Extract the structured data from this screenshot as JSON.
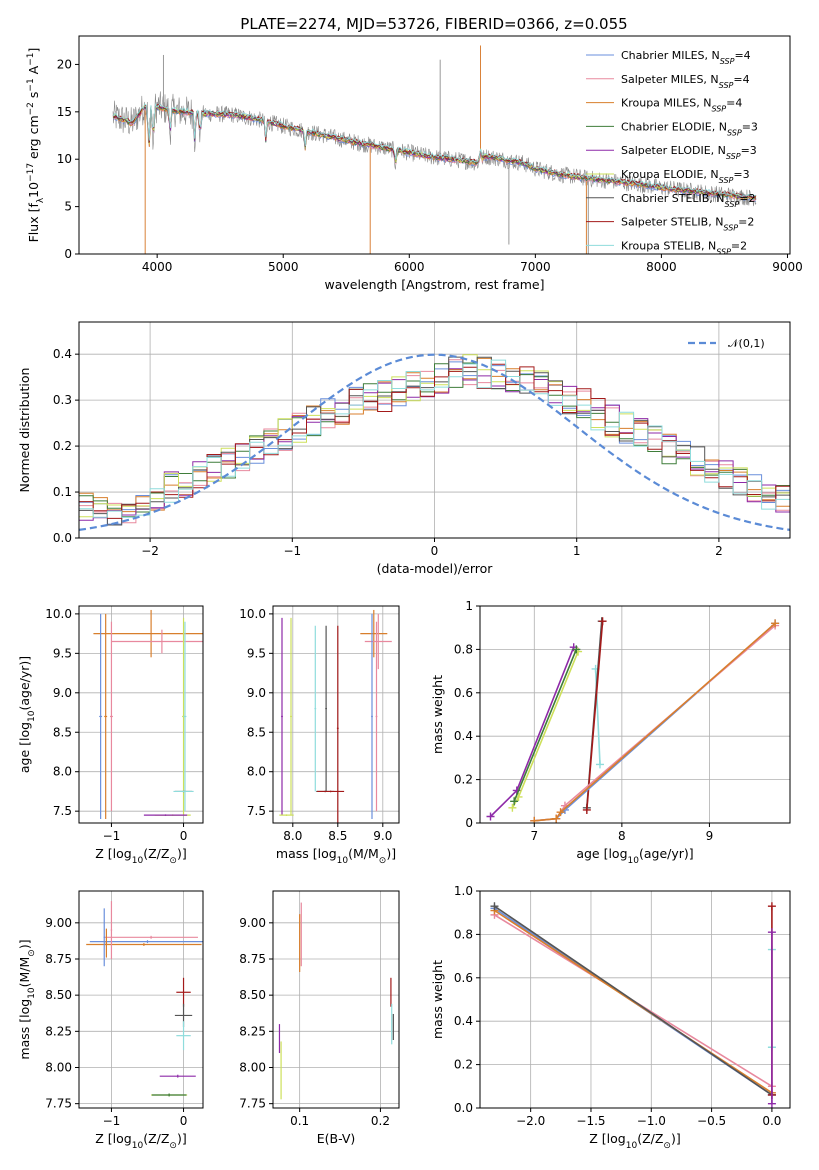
{
  "title": "PLATE=2274, MJD=53726, FIBERID=0366, z=0.055",
  "colors": {
    "Chabrier MILES": "#6a8fdc",
    "Salpeter MILES": "#e8899e",
    "Kroupa MILES": "#d87f2c",
    "Chabrier ELODIE": "#3f7d3a",
    "Salpeter ELODIE": "#8e2aa8",
    "Kroupa ELODIE": "#cde05a",
    "Chabrier STELIB": "#555555",
    "Salpeter STELIB": "#a31a1a",
    "Kroupa STELIB": "#8fdcdc",
    "data": "#888888",
    "normal": "#5b8bd6"
  },
  "chart_data": [
    {
      "id": "spectrum",
      "type": "line",
      "xlabel": "wavelength [Angstrom, rest frame]",
      "ylabel_parts": [
        "Flux [f",
        "λ",
        "10",
        "−17",
        " erg cm",
        "−2",
        " s",
        "−1",
        " A",
        "−1",
        "]"
      ],
      "xlim": [
        3380,
        9020
      ],
      "ylim": [
        0,
        23
      ],
      "xticks": [
        4000,
        5000,
        6000,
        7000,
        8000,
        9000
      ],
      "yticks": [
        0,
        5,
        10,
        15,
        20
      ],
      "continuum_points": [
        [
          3650,
          14.5
        ],
        [
          3700,
          14.3
        ],
        [
          3800,
          13.8
        ],
        [
          3900,
          15.5
        ],
        [
          4000,
          15.5
        ],
        [
          4100,
          15.2
        ],
        [
          4200,
          15.0
        ],
        [
          4400,
          14.8
        ],
        [
          4600,
          14.7
        ],
        [
          4800,
          14.2
        ],
        [
          5000,
          13.5
        ],
        [
          5200,
          12.9
        ],
        [
          5400,
          12.3
        ],
        [
          5600,
          11.7
        ],
        [
          5800,
          11.2
        ],
        [
          6000,
          10.7
        ],
        [
          6200,
          10.2
        ],
        [
          6400,
          9.9
        ],
        [
          6550,
          9.6
        ],
        [
          6600,
          10.3
        ],
        [
          6700,
          10.1
        ],
        [
          6900,
          9.6
        ],
        [
          7000,
          9.0
        ],
        [
          7200,
          8.4
        ],
        [
          7400,
          8.0
        ],
        [
          7600,
          7.7
        ],
        [
          7800,
          7.4
        ],
        [
          8000,
          7.0
        ],
        [
          8200,
          6.7
        ],
        [
          8400,
          6.4
        ],
        [
          8600,
          6.1
        ],
        [
          8750,
          5.9
        ]
      ],
      "legend": [
        "Chabrier MILES, N_SSP=4",
        "Salpeter MILES, N_SSP=4",
        "Kroupa MILES, N_SSP=4",
        "Chabrier ELODIE, N_SSP=3",
        "Salpeter ELODIE, N_SSP=3",
        "Kroupa ELODIE, N_SSP=3",
        "Chabrier STELIB, N_SSP=2",
        "Salpeter STELIB, N_SSP=2",
        "Kroupa STELIB, N_SSP=2"
      ],
      "legend_placement": "upper right",
      "grid": false
    },
    {
      "id": "residuals",
      "type": "histogram",
      "xlabel": "(data-model)/error",
      "ylabel": "Normed distribution",
      "xlim": [
        -2.5,
        2.5
      ],
      "ylim": [
        0,
        0.47
      ],
      "xticks": [
        -2,
        -1,
        0,
        1,
        2
      ],
      "yticks": [
        0.0,
        0.1,
        0.2,
        0.3,
        0.4
      ],
      "bin_edges_start": -2.5,
      "bin_width": 0.1,
      "base_heights": [
        0.07,
        0.06,
        0.055,
        0.065,
        0.08,
        0.09,
        0.11,
        0.12,
        0.135,
        0.15,
        0.165,
        0.18,
        0.195,
        0.21,
        0.225,
        0.24,
        0.255,
        0.27,
        0.28,
        0.295,
        0.305,
        0.31,
        0.32,
        0.33,
        0.34,
        0.35,
        0.36,
        0.365,
        0.36,
        0.355,
        0.35,
        0.34,
        0.33,
        0.32,
        0.305,
        0.29,
        0.27,
        0.255,
        0.24,
        0.225,
        0.21,
        0.195,
        0.18,
        0.165,
        0.15,
        0.135,
        0.12,
        0.105,
        0.09,
        0.08
      ],
      "normal_legend": "𝒩(0,1)",
      "legend_placement": "upper right",
      "grid": true
    },
    {
      "id": "age_vs_Z",
      "type": "errorbar",
      "xlabel_parts": [
        "Z [log",
        "10",
        "(Z/Z",
        "⊙",
        ")]"
      ],
      "ylabel_parts": [
        "age  [log",
        "10",
        "(age/yr)]"
      ],
      "xlim": [
        -1.45,
        0.27
      ],
      "ylim": [
        7.35,
        10.1
      ],
      "xticks": [
        -1,
        0
      ],
      "yticks": [
        7.5,
        8.0,
        8.5,
        9.0,
        9.5,
        10.0
      ],
      "grid": true,
      "points": [
        {
          "m": "Kroupa MILES",
          "x": -0.45,
          "y": 9.75,
          "xerr": 0.8,
          "yerr": 0.3
        },
        {
          "m": "Salpeter MILES",
          "x": -0.3,
          "y": 9.65,
          "xerr": 0.7,
          "yerr": 0.15
        },
        {
          "m": "Chabrier MILES",
          "x": -1.15,
          "y": 8.7,
          "xerr": 0.02,
          "yerr": 1.3
        },
        {
          "m": "Salpeter MILES",
          "x": -1.0,
          "y": 8.7,
          "xerr": 0.02,
          "yerr": 1.2
        },
        {
          "m": "Kroupa MILES",
          "x": -1.08,
          "y": 8.7,
          "xerr": 0.02,
          "yerr": 1.3
        },
        {
          "m": "Kroupa ELODIE",
          "x": 0.0,
          "y": 8.7,
          "xerr": 0.02,
          "yerr": 1.25
        },
        {
          "m": "Kroupa STELIB",
          "x": 0.02,
          "y": 8.7,
          "xerr": 0.02,
          "yerr": 1.2
        },
        {
          "m": "Chabrier STELIB",
          "x": 0.0,
          "y": 7.75,
          "xerr": 0.12,
          "yerr": 0.01
        },
        {
          "m": "Kroupa STELIB",
          "x": 0.0,
          "y": 7.75,
          "xerr": 0.14,
          "yerr": 0.01
        },
        {
          "m": "Kroupa ELODIE",
          "x": -0.15,
          "y": 7.45,
          "xerr": 0.25,
          "yerr": 0.01
        },
        {
          "m": "Salpeter ELODIE",
          "x": -0.25,
          "y": 7.45,
          "xerr": 0.3,
          "yerr": 0.01
        }
      ]
    },
    {
      "id": "age_vs_mass",
      "type": "errorbar",
      "xlabel_parts": [
        "mass [log",
        "10",
        "(M/M",
        "⊙",
        ")]"
      ],
      "xlim": [
        7.78,
        9.18
      ],
      "ylim": [
        7.35,
        10.1
      ],
      "xticks": [
        8.0,
        8.5,
        9.0
      ],
      "yticks": [
        7.5,
        8.0,
        8.5,
        9.0,
        9.5,
        10.0
      ],
      "grid": true,
      "points": [
        {
          "m": "Kroupa ELODIE",
          "x": 7.98,
          "y": 8.7,
          "xerr": 0.01,
          "yerr": 1.25
        },
        {
          "m": "Salpeter ELODIE",
          "x": 7.88,
          "y": 8.7,
          "xerr": 0.01,
          "yerr": 1.25
        },
        {
          "m": "Kroupa ELODIE",
          "x": 7.93,
          "y": 7.45,
          "xerr": 0.08,
          "yerr": 0.01
        },
        {
          "m": "Kroupa STELIB",
          "x": 8.25,
          "y": 8.8,
          "xerr": 0.01,
          "yerr": 1.05
        },
        {
          "m": "Chabrier STELIB",
          "x": 8.37,
          "y": 8.8,
          "xerr": 0.01,
          "yerr": 1.05
        },
        {
          "m": "Salpeter STELIB",
          "x": 8.5,
          "y": 8.55,
          "xerr": 0.01,
          "yerr": 1.3
        },
        {
          "m": "Chabrier STELIB",
          "x": 8.36,
          "y": 7.75,
          "xerr": 0.1,
          "yerr": 0.01
        },
        {
          "m": "Salpeter STELIB",
          "x": 8.42,
          "y": 7.75,
          "xerr": 0.15,
          "yerr": 0.01
        },
        {
          "m": "Kroupa MILES",
          "x": 8.9,
          "y": 9.75,
          "xerr": 0.15,
          "yerr": 0.3
        },
        {
          "m": "Salpeter MILES",
          "x": 8.95,
          "y": 9.65,
          "xerr": 0.15,
          "yerr": 0.35
        },
        {
          "m": "Chabrier MILES",
          "x": 8.88,
          "y": 8.7,
          "xerr": 0.01,
          "yerr": 1.3
        },
        {
          "m": "Salpeter MILES",
          "x": 8.93,
          "y": 8.7,
          "xerr": 0.01,
          "yerr": 1.2
        }
      ]
    },
    {
      "id": "massweight_vs_age",
      "type": "line",
      "xlabel_parts": [
        "age  [log",
        "10",
        "(age/yr)]"
      ],
      "ylabel": "mass weight",
      "xlim": [
        6.38,
        9.92
      ],
      "ylim": [
        0,
        1
      ],
      "xticks": [
        7,
        8,
        9
      ],
      "yticks": [
        0.0,
        0.2,
        0.4,
        0.6,
        0.8,
        1.0
      ],
      "grid": true,
      "series": [
        {
          "m": "Salpeter ELODIE",
          "points": [
            [
              6.5,
              0.03
            ],
            [
              6.8,
              0.15
            ],
            [
              7.45,
              0.81
            ]
          ]
        },
        {
          "m": "Kroupa ELODIE",
          "points": [
            [
              6.75,
              0.07
            ],
            [
              6.82,
              0.12
            ],
            [
              7.5,
              0.79
            ]
          ]
        },
        {
          "m": "Chabrier ELODIE",
          "points": [
            [
              6.77,
              0.1
            ],
            [
              7.48,
              0.8
            ]
          ]
        },
        {
          "m": "Kroupa STELIB",
          "points": [
            [
              7.75,
              0.27
            ],
            [
              7.7,
              0.71
            ]
          ]
        },
        {
          "m": "Chabrier STELIB",
          "points": [
            [
              7.6,
              0.07
            ],
            [
              7.77,
              0.93
            ]
          ]
        },
        {
          "m": "Salpeter STELIB",
          "points": [
            [
              7.6,
              0.06
            ],
            [
              7.78,
              0.93
            ]
          ]
        },
        {
          "m": "Chabrier MILES",
          "points": [
            [
              7.0,
              0.01
            ],
            [
              7.25,
              0.02
            ],
            [
              7.35,
              0.06
            ],
            [
              9.75,
              0.92
            ]
          ]
        },
        {
          "m": "Salpeter MILES",
          "points": [
            [
              7.0,
              0.01
            ],
            [
              7.25,
              0.02
            ],
            [
              7.35,
              0.08
            ],
            [
              9.75,
              0.91
            ]
          ]
        },
        {
          "m": "Kroupa MILES",
          "points": [
            [
              7.0,
              0.01
            ],
            [
              7.25,
              0.02
            ],
            [
              7.3,
              0.05
            ],
            [
              9.75,
              0.92
            ]
          ]
        }
      ]
    },
    {
      "id": "mass_vs_Z",
      "type": "errorbar",
      "xlabel_parts": [
        "Z [log",
        "10",
        "(Z/Z",
        "⊙",
        ")]"
      ],
      "ylabel_parts": [
        "mass [log",
        "10",
        "(M/M",
        "⊙",
        ")]"
      ],
      "xlim": [
        -1.45,
        0.27
      ],
      "ylim": [
        7.72,
        9.22
      ],
      "xticks": [
        -1,
        0
      ],
      "yticks": [
        7.75,
        8.0,
        8.25,
        8.5,
        8.75,
        9.0
      ],
      "grid": true,
      "points": [
        {
          "m": "Chabrier MILES",
          "x": -0.5,
          "y": 8.87,
          "xerr": 0.8,
          "yerr": 0.01
        },
        {
          "m": "Salpeter MILES",
          "x": -0.45,
          "y": 8.9,
          "xerr": 0.65,
          "yerr": 0.01
        },
        {
          "m": "Kroupa MILES",
          "x": -0.55,
          "y": 8.85,
          "xerr": 0.8,
          "yerr": 0.01
        },
        {
          "m": "Chabrier MILES",
          "x": -1.1,
          "y": 8.9,
          "xerr": 0.01,
          "yerr": 0.2
        },
        {
          "m": "Salpeter MILES",
          "x": -1.0,
          "y": 8.95,
          "xerr": 0.01,
          "yerr": 0.2
        },
        {
          "m": "Kroupa MILES",
          "x": -1.07,
          "y": 8.86,
          "xerr": 0.01,
          "yerr": 0.1
        },
        {
          "m": "Salpeter STELIB",
          "x": 0.0,
          "y": 8.52,
          "xerr": 0.1,
          "yerr": 0.1
        },
        {
          "m": "Chabrier STELIB",
          "x": 0.0,
          "y": 8.36,
          "xerr": 0.12,
          "yerr": 0.08
        },
        {
          "m": "Kroupa STELIB",
          "x": 0.0,
          "y": 8.22,
          "xerr": 0.1,
          "yerr": 0.1
        },
        {
          "m": "Salpeter ELODIE",
          "x": -0.08,
          "y": 7.94,
          "xerr": 0.25,
          "yerr": 0.01
        },
        {
          "m": "Kroupa ELODIE",
          "x": -0.2,
          "y": 7.81,
          "xerr": 0.25,
          "yerr": 0.01
        },
        {
          "m": "Chabrier ELODIE",
          "x": -0.2,
          "y": 7.81,
          "xerr": 0.24,
          "yerr": 0.01
        }
      ]
    },
    {
      "id": "mass_vs_EBV",
      "type": "errorbar",
      "xlabel": "E(B-V)",
      "xlim": [
        0.067,
        0.223
      ],
      "ylim": [
        7.72,
        9.22
      ],
      "xticks": [
        0.1,
        0.2
      ],
      "yticks": [
        7.75,
        8.0,
        8.25,
        8.5,
        8.75,
        9.0
      ],
      "grid": true,
      "points": [
        {
          "m": "Salpeter ELODIE",
          "x": 0.075,
          "y": 8.2,
          "xerr": 0.0,
          "yerr": 0.1
        },
        {
          "m": "Kroupa ELODIE",
          "x": 0.077,
          "y": 7.98,
          "xerr": 0.0,
          "yerr": 0.2
        },
        {
          "m": "Kroupa MILES",
          "x": 0.1,
          "y": 8.86,
          "xerr": 0.0,
          "yerr": 0.2
        },
        {
          "m": "Salpeter MILES",
          "x": 0.102,
          "y": 8.92,
          "xerr": 0.0,
          "yerr": 0.22
        },
        {
          "m": "Salpeter STELIB",
          "x": 0.213,
          "y": 8.52,
          "xerr": 0.0,
          "yerr": 0.1
        },
        {
          "m": "Kroupa STELIB",
          "x": 0.214,
          "y": 8.3,
          "xerr": 0.0,
          "yerr": 0.14
        },
        {
          "m": "Chabrier STELIB",
          "x": 0.216,
          "y": 8.28,
          "xerr": 0.0,
          "yerr": 0.09
        }
      ]
    },
    {
      "id": "massweight_vs_Z",
      "type": "line",
      "xlabel_parts": [
        "Z [log",
        "10",
        "(Z/Z",
        "⊙",
        ")]"
      ],
      "ylabel": "mass weight",
      "xlim": [
        -2.42,
        0.15
      ],
      "ylim": [
        0,
        1
      ],
      "xticks": [
        -2.0,
        -1.5,
        -1.0,
        -0.5,
        0.0
      ],
      "yticks": [
        0.0,
        0.2,
        0.4,
        0.6,
        0.8,
        1.0
      ],
      "grid": true,
      "series": [
        {
          "m": "Chabrier MILES",
          "points": [
            [
              -2.3,
              0.92
            ],
            [
              0.0,
              0.06
            ]
          ]
        },
        {
          "m": "Salpeter MILES",
          "points": [
            [
              -2.3,
              0.89
            ],
            [
              0.0,
              0.1
            ]
          ]
        },
        {
          "m": "Kroupa MILES",
          "points": [
            [
              -2.3,
              0.91
            ],
            [
              0.0,
              0.07
            ]
          ]
        },
        {
          "m": "Chabrier STELIB",
          "points": [
            [
              -2.3,
              0.93
            ],
            [
              0.0,
              0.06
            ]
          ]
        },
        {
          "m": "Kroupa STELIB",
          "points": [
            [
              0.0,
              0.28
            ],
            [
              0.0,
              0.73
            ]
          ]
        },
        {
          "m": "Salpeter STELIB",
          "points": [
            [
              0.0,
              0.06
            ],
            [
              0.0,
              0.93
            ]
          ]
        },
        {
          "m": "Salpeter ELODIE",
          "points": [
            [
              0.0,
              0.02
            ],
            [
              0.0,
              0.81
            ]
          ]
        }
      ]
    }
  ]
}
